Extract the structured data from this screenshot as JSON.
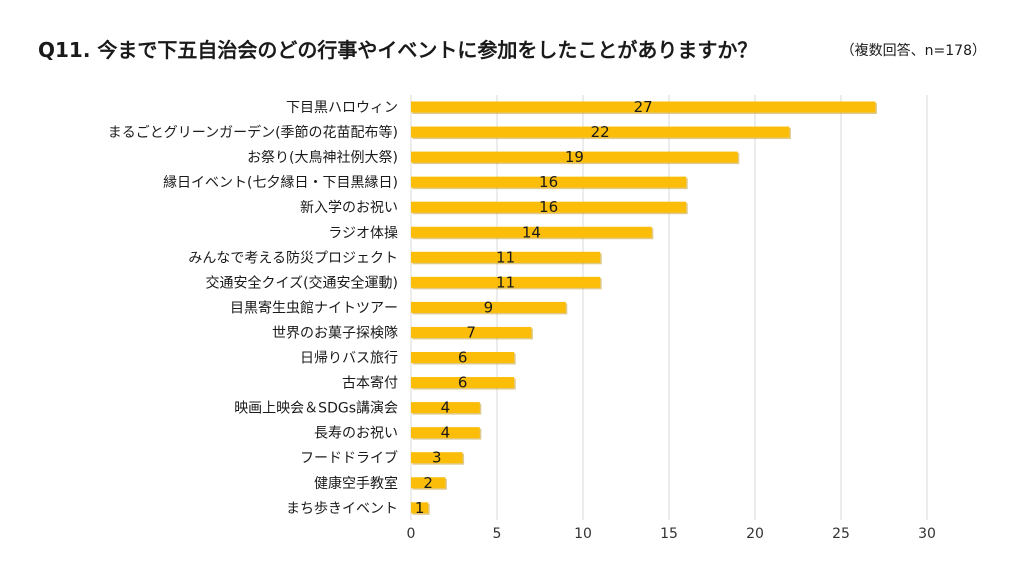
{
  "title": "Q11. 今まで下五自治会のどの行事やイベントに参加をしたことがありますか？",
  "note": "（複数回答、n=178）",
  "colors": {
    "bar": "#fbbd08",
    "bar_shadow": "#b98a00",
    "grid": "#d9d9d9"
  },
  "chart_data": {
    "type": "bar",
    "orientation": "horizontal",
    "title": "Q11. 今まで下五自治会のどの行事やイベントに参加をしたことがありますか？",
    "categories": [
      "下目黒ハロウィン",
      "まるごとグリーンガーデン(季節の花苗配布等)",
      "お祭り(大鳥神社例大祭)",
      "縁日イベント(七夕縁日・下目黒縁日)",
      "新入学のお祝い",
      "ラジオ体操",
      "みんなで考える防災プロジェクト",
      "交通安全クイズ(交通安全運動)",
      "目黒寄生虫館ナイトツアー",
      "世界のお菓子探検隊",
      "日帰りバス旅行",
      "古本寄付",
      "映画上映会＆SDGs講演会",
      "長寿のお祝い",
      "フードドライブ",
      "健康空手教室",
      "まち歩きイベント"
    ],
    "values": [
      27,
      22,
      19,
      16,
      16,
      14,
      11,
      11,
      9,
      7,
      6,
      6,
      4,
      4,
      3,
      2,
      1
    ],
    "xlim": [
      0,
      30
    ],
    "xticks": [
      0,
      5,
      10,
      15,
      20,
      25,
      30
    ],
    "grid": true,
    "data_labels": true
  }
}
